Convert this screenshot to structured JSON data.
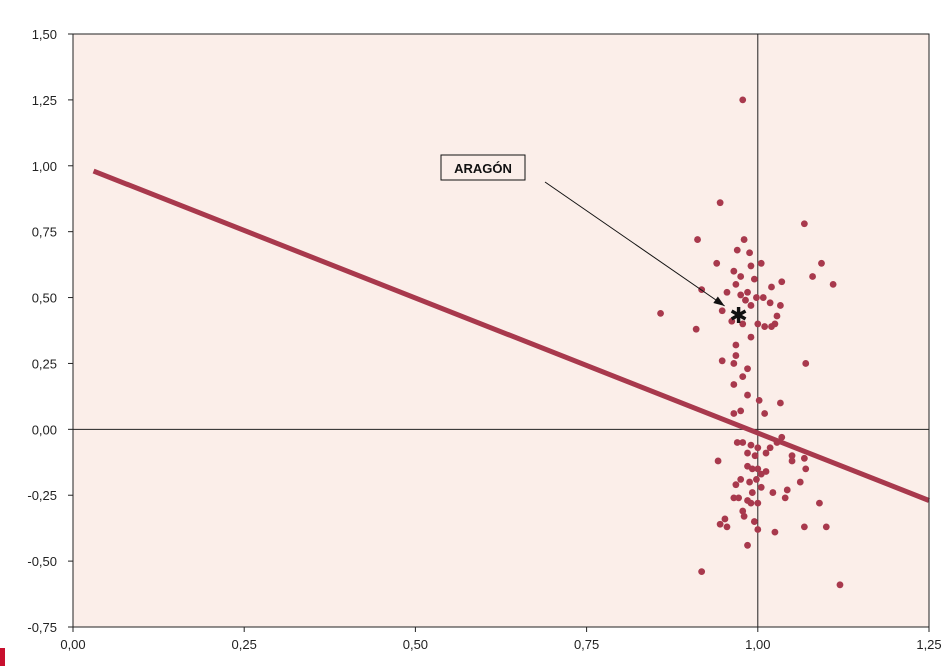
{
  "chart_data": {
    "type": "scatter",
    "title": "",
    "xlabel": "",
    "ylabel": "",
    "xlim": [
      0,
      1.25
    ],
    "ylim": [
      -0.75,
      1.5
    ],
    "x_ticks": [
      "0,00",
      "0,25",
      "0,50",
      "0,75",
      "1,00",
      "1,25"
    ],
    "y_ticks": [
      "-0,75",
      "-0,50",
      "-0,25",
      "0,00",
      "0,25",
      "0,50",
      "0,75",
      "1,00",
      "1,25",
      "1,50"
    ],
    "grid": false,
    "reference_lines": {
      "x": 1.0,
      "y": 0.0
    },
    "colors": {
      "points": "#a8394d",
      "trend": "#a8394d",
      "plot_bg": "#fbeee9",
      "page_bg": "#ffffff"
    },
    "trend_line": {
      "x": [
        0.03,
        1.25
      ],
      "y": [
        0.98,
        -0.27
      ]
    },
    "annotation": {
      "label": "ARAGÓN",
      "x": 0.972,
      "y": 0.43,
      "marker": "asterisk"
    },
    "points": [
      [
        0.978,
        1.25
      ],
      [
        0.945,
        0.86
      ],
      [
        0.912,
        0.72
      ],
      [
        0.97,
        0.68
      ],
      [
        0.988,
        0.67
      ],
      [
        0.98,
        0.72
      ],
      [
        1.068,
        0.78
      ],
      [
        0.94,
        0.63
      ],
      [
        0.965,
        0.6
      ],
      [
        0.99,
        0.62
      ],
      [
        1.005,
        0.63
      ],
      [
        1.093,
        0.63
      ],
      [
        1.11,
        0.55
      ],
      [
        1.08,
        0.58
      ],
      [
        0.918,
        0.53
      ],
      [
        0.975,
        0.58
      ],
      [
        0.995,
        0.57
      ],
      [
        1.02,
        0.54
      ],
      [
        1.035,
        0.56
      ],
      [
        0.968,
        0.55
      ],
      [
        0.955,
        0.52
      ],
      [
        0.985,
        0.52
      ],
      [
        0.998,
        0.5
      ],
      [
        1.008,
        0.5
      ],
      [
        1.018,
        0.48
      ],
      [
        1.033,
        0.47
      ],
      [
        0.948,
        0.45
      ],
      [
        0.975,
        0.51
      ],
      [
        0.982,
        0.49
      ],
      [
        1.028,
        0.43
      ],
      [
        1.025,
        0.4
      ],
      [
        1.01,
        0.39
      ],
      [
        0.99,
        0.47
      ],
      [
        0.858,
        0.44
      ],
      [
        0.91,
        0.38
      ],
      [
        0.962,
        0.41
      ],
      [
        0.978,
        0.4
      ],
      [
        1.0,
        0.4
      ],
      [
        1.02,
        0.39
      ],
      [
        0.99,
        0.35
      ],
      [
        0.968,
        0.32
      ],
      [
        0.948,
        0.26
      ],
      [
        0.968,
        0.28
      ],
      [
        0.965,
        0.25
      ],
      [
        0.985,
        0.23
      ],
      [
        0.978,
        0.2
      ],
      [
        0.965,
        0.17
      ],
      [
        1.07,
        0.25
      ],
      [
        0.985,
        0.13
      ],
      [
        1.002,
        0.11
      ],
      [
        1.033,
        0.1
      ],
      [
        0.975,
        0.07
      ],
      [
        0.965,
        0.06
      ],
      [
        1.01,
        0.06
      ],
      [
        0.97,
        -0.05
      ],
      [
        0.978,
        -0.05
      ],
      [
        0.99,
        -0.06
      ],
      [
        1.0,
        -0.07
      ],
      [
        1.018,
        -0.07
      ],
      [
        1.028,
        -0.05
      ],
      [
        1.035,
        -0.03
      ],
      [
        0.985,
        -0.09
      ],
      [
        0.996,
        -0.1
      ],
      [
        1.012,
        -0.09
      ],
      [
        1.05,
        -0.1
      ],
      [
        1.068,
        -0.11
      ],
      [
        1.05,
        -0.12
      ],
      [
        1.07,
        -0.15
      ],
      [
        0.942,
        -0.12
      ],
      [
        0.985,
        -0.14
      ],
      [
        0.992,
        -0.15
      ],
      [
        1.0,
        -0.15
      ],
      [
        1.012,
        -0.16
      ],
      [
        1.005,
        -0.17
      ],
      [
        0.975,
        -0.19
      ],
      [
        0.968,
        -0.21
      ],
      [
        0.988,
        -0.2
      ],
      [
        0.998,
        -0.19
      ],
      [
        1.043,
        -0.23
      ],
      [
        1.062,
        -0.2
      ],
      [
        0.965,
        -0.26
      ],
      [
        0.972,
        -0.26
      ],
      [
        0.985,
        -0.27
      ],
      [
        0.992,
        -0.24
      ],
      [
        1.005,
        -0.22
      ],
      [
        1.022,
        -0.24
      ],
      [
        1.04,
        -0.26
      ],
      [
        1.09,
        -0.28
      ],
      [
        0.99,
        -0.28
      ],
      [
        1.0,
        -0.28
      ],
      [
        0.978,
        -0.31
      ],
      [
        0.98,
        -0.33
      ],
      [
        0.995,
        -0.35
      ],
      [
        0.945,
        -0.36
      ],
      [
        0.952,
        -0.34
      ],
      [
        0.955,
        -0.37
      ],
      [
        1.0,
        -0.38
      ],
      [
        1.025,
        -0.39
      ],
      [
        1.068,
        -0.37
      ],
      [
        1.1,
        -0.37
      ],
      [
        0.985,
        -0.44
      ],
      [
        0.918,
        -0.54
      ],
      [
        1.12,
        -0.59
      ]
    ]
  }
}
